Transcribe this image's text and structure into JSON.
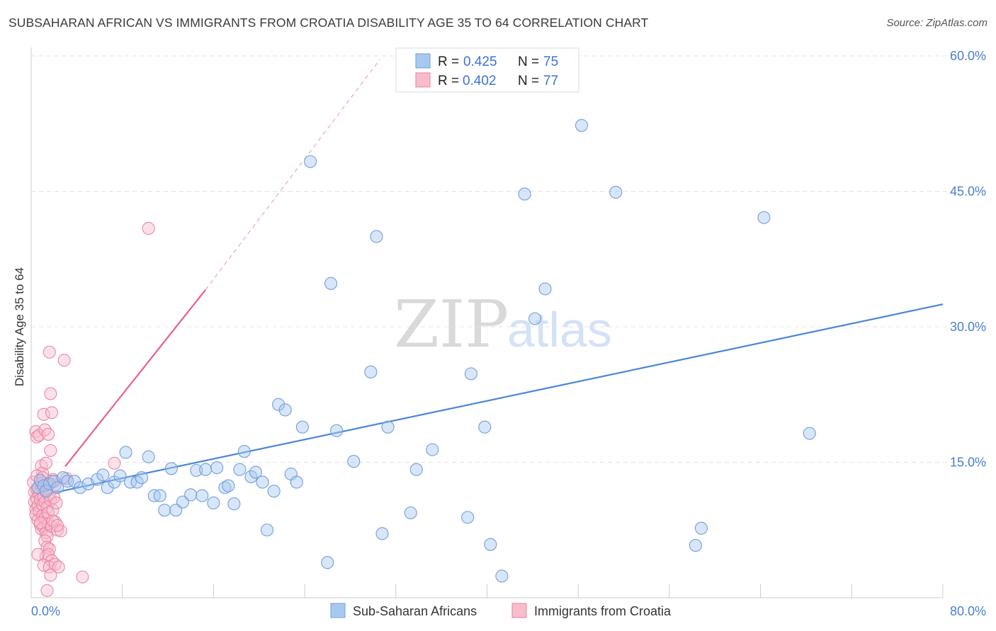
{
  "header": {
    "title": "SUBSAHARAN AFRICAN VS IMMIGRANTS FROM CROATIA DISABILITY AGE 35 TO 64 CORRELATION CHART",
    "source": "Source: ZipAtlas.com"
  },
  "watermark": {
    "part1": "ZIP",
    "part2": "atlas"
  },
  "legend": {
    "r_label": "R =",
    "n_label": "N =",
    "series": [
      {
        "name": "Sub-Saharan Africans",
        "r": "0.425",
        "n": "75",
        "color": "#a8c8f0",
        "stroke": "#6f9fdc"
      },
      {
        "name": "Immigrants from Croatia",
        "r": "0.402",
        "n": "77",
        "color": "#f8bccd",
        "stroke": "#e87fa0"
      }
    ]
  },
  "chart_data": {
    "type": "scatter",
    "title": "SUBSAHARAN AFRICAN VS IMMIGRANTS FROM CROATIA DISABILITY AGE 35 TO 64 CORRELATION CHART",
    "xlabel": "",
    "ylabel": "Disability Age 35 to 64",
    "xlim": [
      0,
      80
    ],
    "ylim": [
      0,
      60
    ],
    "x_tick_labels": [
      "0.0%",
      "80.0%"
    ],
    "y_ticks": [
      15,
      30,
      45,
      60
    ],
    "y_tick_labels": [
      "15.0%",
      "30.0%",
      "45.0%",
      "60.0%"
    ],
    "grid": true,
    "series": [
      {
        "name": "Sub-Saharan Africans",
        "color": "#4a86d8",
        "trend": {
          "x": [
            0,
            80
          ],
          "y": [
            11.1,
            32.5
          ],
          "dashed": false
        },
        "points": [
          [
            0.6,
            12.2
          ],
          [
            0.8,
            13.0
          ],
          [
            1.1,
            12.4
          ],
          [
            1.3,
            11.8
          ],
          [
            1.6,
            12.6
          ],
          [
            2.0,
            12.9
          ],
          [
            2.3,
            12.2
          ],
          [
            2.8,
            13.3
          ],
          [
            3.2,
            12.9
          ],
          [
            3.8,
            12.9
          ],
          [
            4.3,
            12.2
          ],
          [
            5.0,
            12.6
          ],
          [
            5.8,
            13.1
          ],
          [
            6.3,
            13.6
          ],
          [
            6.7,
            12.2
          ],
          [
            7.3,
            12.8
          ],
          [
            7.8,
            13.5
          ],
          [
            8.3,
            16.1
          ],
          [
            8.7,
            12.8
          ],
          [
            9.3,
            12.8
          ],
          [
            9.7,
            13.3
          ],
          [
            10.3,
            15.6
          ],
          [
            10.8,
            11.3
          ],
          [
            11.3,
            11.3
          ],
          [
            11.7,
            9.7
          ],
          [
            12.3,
            14.3
          ],
          [
            12.7,
            9.7
          ],
          [
            13.3,
            10.6
          ],
          [
            14.0,
            11.4
          ],
          [
            14.5,
            14.1
          ],
          [
            15.0,
            11.3
          ],
          [
            15.3,
            14.2
          ],
          [
            16.0,
            10.5
          ],
          [
            16.3,
            14.4
          ],
          [
            17.0,
            12.2
          ],
          [
            17.3,
            12.4
          ],
          [
            17.8,
            10.4
          ],
          [
            18.3,
            14.2
          ],
          [
            18.7,
            16.2
          ],
          [
            19.3,
            13.4
          ],
          [
            19.7,
            13.9
          ],
          [
            20.3,
            12.8
          ],
          [
            20.7,
            7.5
          ],
          [
            21.3,
            11.8
          ],
          [
            21.7,
            21.4
          ],
          [
            22.3,
            20.8
          ],
          [
            22.8,
            13.7
          ],
          [
            23.3,
            12.8
          ],
          [
            23.8,
            18.9
          ],
          [
            24.5,
            48.3
          ],
          [
            26.0,
            3.9
          ],
          [
            26.3,
            34.8
          ],
          [
            26.8,
            18.5
          ],
          [
            28.3,
            15.1
          ],
          [
            29.8,
            25.0
          ],
          [
            30.3,
            40.0
          ],
          [
            30.8,
            7.1
          ],
          [
            31.3,
            18.9
          ],
          [
            33.3,
            9.4
          ],
          [
            33.8,
            14.2
          ],
          [
            35.2,
            16.4
          ],
          [
            38.3,
            8.9
          ],
          [
            38.6,
            24.8
          ],
          [
            39.8,
            18.9
          ],
          [
            40.3,
            5.9
          ],
          [
            41.3,
            2.4
          ],
          [
            43.3,
            44.7
          ],
          [
            44.2,
            30.9
          ],
          [
            45.1,
            34.2
          ],
          [
            48.3,
            52.3
          ],
          [
            51.3,
            44.9
          ],
          [
            58.3,
            5.8
          ],
          [
            58.8,
            7.7
          ],
          [
            64.3,
            42.1
          ],
          [
            68.3,
            18.2
          ]
        ]
      },
      {
        "name": "Immigrants from Croatia",
        "color": "#e8608e",
        "trend": {
          "x": [
            0,
            15.3,
            30.6
          ],
          "y": [
            9.8,
            34.1,
            59.6
          ],
          "dashed_from_x": 15.3
        },
        "points": [
          [
            0.2,
            12.8
          ],
          [
            0.3,
            11.7
          ],
          [
            0.3,
            10.6
          ],
          [
            0.4,
            9.8
          ],
          [
            0.4,
            9.2
          ],
          [
            0.5,
            12.0
          ],
          [
            0.5,
            11.0
          ],
          [
            0.6,
            10.2
          ],
          [
            0.6,
            8.6
          ],
          [
            0.7,
            11.5
          ],
          [
            0.7,
            9.6
          ],
          [
            0.8,
            10.9
          ],
          [
            0.8,
            8.1
          ],
          [
            0.9,
            12.4
          ],
          [
            0.9,
            7.6
          ],
          [
            1.0,
            10.3
          ],
          [
            1.0,
            9.1
          ],
          [
            1.1,
            11.2
          ],
          [
            1.1,
            7.8
          ],
          [
            1.2,
            10.6
          ],
          [
            1.2,
            8.8
          ],
          [
            1.3,
            11.9
          ],
          [
            1.3,
            7.2
          ],
          [
            1.4,
            10.0
          ],
          [
            1.4,
            6.8
          ],
          [
            1.5,
            9.4
          ],
          [
            1.5,
            8.2
          ],
          [
            1.6,
            11.4
          ],
          [
            1.7,
            10.8
          ],
          [
            1.8,
            7.9
          ],
          [
            1.9,
            9.7
          ],
          [
            2.0,
            11.1
          ],
          [
            2.1,
            8.4
          ],
          [
            2.2,
            10.5
          ],
          [
            2.3,
            7.5
          ],
          [
            0.4,
            18.4
          ],
          [
            0.5,
            17.8
          ],
          [
            0.7,
            18.0
          ],
          [
            0.9,
            14.6
          ],
          [
            1.0,
            13.8
          ],
          [
            1.1,
            20.3
          ],
          [
            1.2,
            18.6
          ],
          [
            1.3,
            14.9
          ],
          [
            1.5,
            18.1
          ],
          [
            1.6,
            27.2
          ],
          [
            1.7,
            22.6
          ],
          [
            1.8,
            20.5
          ],
          [
            1.7,
            16.3
          ],
          [
            2.9,
            26.3
          ],
          [
            1.2,
            6.3
          ],
          [
            1.4,
            5.6
          ],
          [
            1.6,
            5.4
          ],
          [
            1.3,
            4.6
          ],
          [
            1.5,
            4.8
          ],
          [
            1.8,
            4.1
          ],
          [
            1.1,
            3.6
          ],
          [
            1.6,
            3.4
          ],
          [
            2.1,
            3.7
          ],
          [
            2.4,
            3.4
          ],
          [
            1.7,
            2.5
          ],
          [
            1.4,
            0.8
          ],
          [
            0.6,
            4.8
          ],
          [
            2.6,
            7.4
          ],
          [
            1.9,
            8.5
          ],
          [
            2.3,
            8.0
          ],
          [
            0.8,
            8.3
          ],
          [
            1.9,
            13.1
          ],
          [
            2.1,
            12.5
          ],
          [
            3.1,
            13.2
          ],
          [
            7.3,
            14.9
          ],
          [
            10.3,
            40.9
          ],
          [
            4.5,
            2.3
          ],
          [
            0.5,
            13.5
          ],
          [
            1.0,
            13.3
          ],
          [
            1.8,
            12.9
          ],
          [
            0.9,
            12.7
          ],
          [
            1.4,
            12.5
          ]
        ]
      }
    ]
  }
}
